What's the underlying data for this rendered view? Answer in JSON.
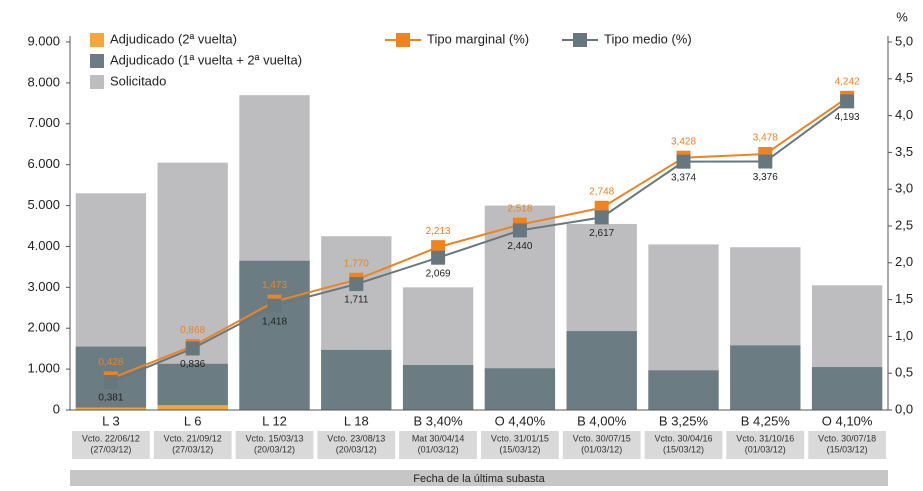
{
  "chart_data": {
    "type": "bar",
    "categories": [
      "L 3",
      "L 6",
      "L 12",
      "L 18",
      "B 3,40%",
      "O 4,40%",
      "B 4,00%",
      "B 3,25%",
      "B 4,25%",
      "O 4,10%"
    ],
    "sublabels": [
      [
        "Vcto. 22/06/12",
        "(27/03/12)"
      ],
      [
        "Vcto. 21/09/12",
        "(27/03/12)"
      ],
      [
        "Vcto. 15/03/13",
        "(20/03/12)"
      ],
      [
        "Vcto. 23/08/13",
        "(20/03/12)"
      ],
      [
        "Mat 30/04/14",
        "(01/03/12)"
      ],
      [
        "Vcto. 31/01/15",
        "(15/03/12)"
      ],
      [
        "Vcto. 30/07/15",
        "(01/03/12)"
      ],
      [
        "Vcto. 30/04/16",
        "(15/03/12)"
      ],
      [
        "Vcto. 31/10/16",
        "(01/03/12)"
      ],
      [
        "Vcto. 30/07/18",
        "(15/03/12)"
      ]
    ],
    "x_label": "Fecha de la última subasta",
    "y2_label": "%",
    "background_series": {
      "name": "Solicitado",
      "color": "#bdbdbf",
      "values": [
        5300,
        6050,
        7700,
        4250,
        3000,
        5000,
        4550,
        4050,
        3980,
        3050
      ]
    },
    "series": [
      {
        "name": "Adjudicado (2ª vuelta)",
        "color": "#f5a53a",
        "values": [
          60,
          120,
          0,
          0,
          0,
          0,
          0,
          0,
          0,
          0
        ]
      },
      {
        "name": "Adjudicado (1ª vuelta + 2ª vuelta)",
        "color": "#6b7d82",
        "values": [
          1490,
          1010,
          3650,
          1470,
          1100,
          1020,
          1930,
          970,
          1580,
          1050
        ]
      }
    ],
    "lines": [
      {
        "name": "Tipo marginal (%)",
        "color": "#ee8320",
        "axis": "y2",
        "label_side": "above",
        "values": [
          0.428,
          0.868,
          1.473,
          1.77,
          2.213,
          2.518,
          2.748,
          3.428,
          3.478,
          4.242
        ],
        "value_labels": [
          "0,428",
          "0,868",
          "1,473",
          "1,770",
          "2,213",
          "2,518",
          "2,748",
          "3,428",
          "3,478",
          "4,242"
        ]
      },
      {
        "name": "Tipo medio (%)",
        "color": "#66787e",
        "axis": "y2",
        "label_side": "below",
        "values": [
          0.381,
          0.836,
          1.418,
          1.711,
          2.069,
          2.44,
          2.617,
          3.374,
          3.376,
          4.193
        ],
        "value_labels": [
          "0,381",
          "0,836",
          "1,418",
          "1,711",
          "2,069",
          "2,440",
          "2,617",
          "3,374",
          "3,376",
          "4,193"
        ]
      }
    ],
    "ylim": [
      0,
      9000
    ],
    "yticks": [
      0,
      {
        "value": 1000,
        "label": "1.000"
      },
      {
        "value": 2000,
        "label": "2.000"
      },
      {
        "value": 3000,
        "label": "3.000"
      },
      {
        "value": 4000,
        "label": "4.000"
      },
      {
        "value": 5000,
        "label": "5.000"
      },
      {
        "value": 6000,
        "label": "6.000"
      },
      {
        "value": 7000,
        "label": "7.000"
      },
      {
        "value": 8000,
        "label": "8.000"
      },
      {
        "value": 9000,
        "label": "9.000"
      }
    ],
    "y2lim": [
      0,
      5
    ],
    "y2ticks": [
      {
        "value": 0,
        "label": "0,0"
      },
      {
        "value": 0.5,
        "label": "0,5"
      },
      {
        "value": 1,
        "label": "1,0"
      },
      {
        "value": 1.5,
        "label": "1,5"
      },
      {
        "value": 2,
        "label": "2,0"
      },
      {
        "value": 2.5,
        "label": "2,5"
      },
      {
        "value": 3,
        "label": "3,0"
      },
      {
        "value": 3.5,
        "label": "3,5"
      },
      {
        "value": 4,
        "label": "4,0"
      },
      {
        "value": 4.5,
        "label": "4,5"
      },
      {
        "value": 5,
        "label": "5,0"
      }
    ]
  }
}
